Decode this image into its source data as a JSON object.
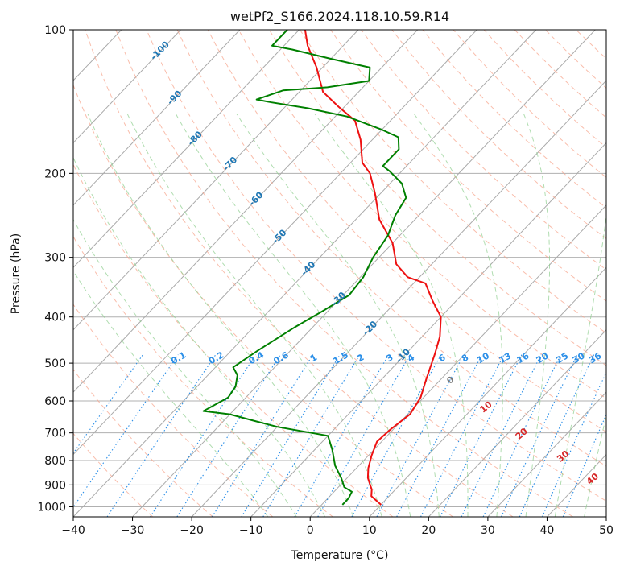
{
  "chart_data": {
    "type": "line",
    "title": "wetPf2_S166.2024.118.10.59.R14",
    "xlabel": "Temperature (°C)",
    "ylabel": "Pressure (hPa)",
    "xlim": [
      -40,
      50
    ],
    "ylim": [
      1050,
      100
    ],
    "y_scale": "log",
    "grid": true,
    "x_ticks": [
      -40,
      -30,
      -20,
      -10,
      0,
      10,
      20,
      30,
      40,
      50
    ],
    "y_ticks": [
      100,
      200,
      300,
      400,
      500,
      600,
      700,
      800,
      900,
      1000
    ],
    "series": [
      {
        "color": "#ee1111",
        "role": "temperature",
        "points": [
          [
            10,
            990
          ],
          [
            7,
            950
          ],
          [
            6,
            920
          ],
          [
            5,
            900
          ],
          [
            3.5,
            870
          ],
          [
            2,
            830
          ],
          [
            0.5,
            780
          ],
          [
            -0.8,
            730
          ],
          [
            -0.5,
            690
          ],
          [
            0.4,
            640
          ],
          [
            -0.5,
            590
          ],
          [
            -2.5,
            540
          ],
          [
            -5,
            480
          ],
          [
            -7,
            440
          ],
          [
            -10,
            400
          ],
          [
            -14,
            370
          ],
          [
            -18,
            340
          ],
          [
            -22,
            330
          ],
          [
            -26,
            310
          ],
          [
            -30,
            280
          ],
          [
            -36,
            250
          ],
          [
            -41,
            220
          ],
          [
            -45,
            200
          ],
          [
            -48,
            190
          ],
          [
            -52,
            170
          ],
          [
            -56,
            155
          ],
          [
            -61,
            145
          ],
          [
            -66,
            135
          ],
          [
            -71,
            120
          ],
          [
            -76,
            108
          ],
          [
            -79,
            100
          ]
        ]
      },
      {
        "color": "#008000",
        "role": "dewpoint",
        "points": [
          [
            3.5,
            990
          ],
          [
            3.5,
            960
          ],
          [
            3,
            930
          ],
          [
            1,
            910
          ],
          [
            -1,
            870
          ],
          [
            -4,
            820
          ],
          [
            -7,
            760
          ],
          [
            -10,
            710
          ],
          [
            -20,
            680
          ],
          [
            -25,
            660
          ],
          [
            -30,
            640
          ],
          [
            -35,
            630
          ],
          [
            -33,
            590
          ],
          [
            -33.5,
            560
          ],
          [
            -35,
            530
          ],
          [
            -37,
            510
          ],
          [
            -35.5,
            470
          ],
          [
            -33,
            420
          ],
          [
            -31,
            390
          ],
          [
            -29,
            360
          ],
          [
            -29.5,
            330
          ],
          [
            -31,
            300
          ],
          [
            -32,
            270
          ],
          [
            -34,
            245
          ],
          [
            -35,
            225
          ],
          [
            -38,
            210
          ],
          [
            -42,
            198
          ],
          [
            -44,
            193
          ],
          [
            -44,
            178
          ],
          [
            -46,
            168
          ],
          [
            -50,
            162
          ],
          [
            -58,
            152
          ],
          [
            -66,
            146
          ],
          [
            -73,
            142
          ],
          [
            -76,
            140
          ],
          [
            -73,
            134
          ],
          [
            -66,
            132
          ],
          [
            -60,
            128
          ],
          [
            -62,
            120
          ],
          [
            -70,
            115
          ],
          [
            -78,
            110
          ],
          [
            -82,
            108
          ],
          [
            -82,
            104
          ],
          [
            -82,
            100
          ]
        ]
      }
    ],
    "mixing_ratio_labels": [
      "0.1",
      "0.2",
      "0.4",
      "0.6",
      "1",
      "1.5",
      "2",
      "3",
      "4",
      "6",
      "8",
      "10",
      "13",
      "16",
      "20",
      "25",
      "30",
      "36"
    ],
    "isotherm_labels": [
      "-100",
      "-90",
      "-80",
      "-70",
      "-60",
      "-50",
      "-40",
      "-30",
      "-20",
      "-10"
    ],
    "wet_adiabat_labels": [
      "0",
      "10",
      "20",
      "30",
      "40"
    ]
  }
}
